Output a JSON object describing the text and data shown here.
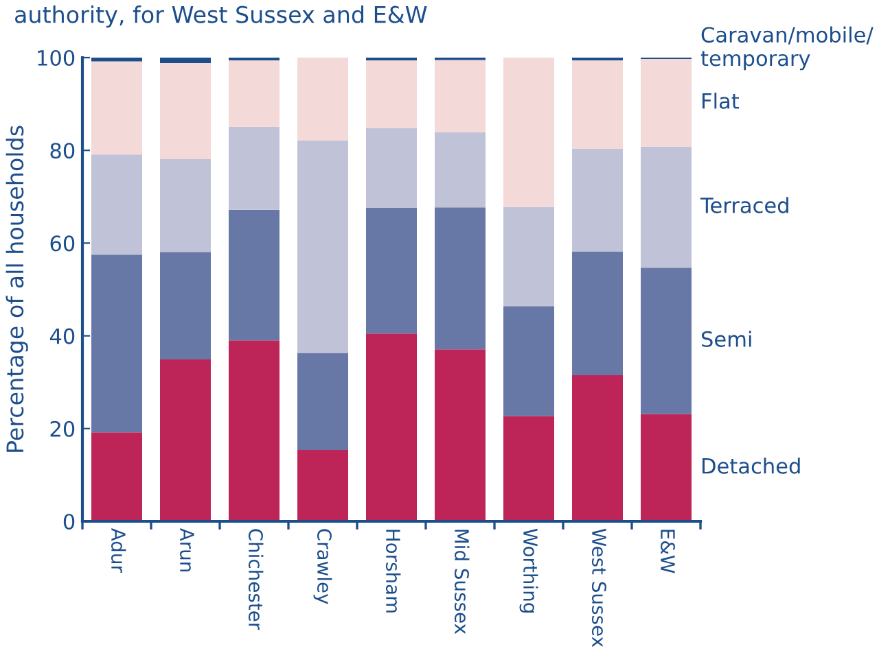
{
  "chart_data": {
    "type": "bar",
    "stacked": true,
    "title": "authority, for West Sussex and E&W",
    "ylabel": "Percentage of all households",
    "categories": [
      "Adur",
      "Arun",
      "Chichester",
      "Crawley",
      "Horsham",
      "Mid Sussex",
      "Worthing",
      "West Sussex",
      "E&W"
    ],
    "series": [
      {
        "name": "Detached",
        "color": "#bd2558",
        "values": [
          19.2,
          34.9,
          39.0,
          15.4,
          40.5,
          37.1,
          22.7,
          31.5,
          23.1
        ]
      },
      {
        "name": "Semi",
        "color": "#6878a6",
        "values": [
          38.3,
          23.2,
          28.2,
          20.9,
          27.1,
          30.6,
          23.7,
          26.7,
          31.6
        ]
      },
      {
        "name": "Terraced",
        "color": "#c0c2d8",
        "values": [
          21.6,
          20.0,
          17.9,
          45.8,
          17.2,
          16.2,
          21.4,
          22.2,
          26.1
        ]
      },
      {
        "name": "Flat",
        "color": "#f4d9d9",
        "values": [
          20.1,
          20.7,
          14.3,
          17.9,
          14.6,
          15.6,
          32.2,
          19.0,
          18.9
        ]
      },
      {
        "name": "Caravan/mobile/\ntemporary",
        "color": "#1d4e8c",
        "values": [
          0.8,
          1.2,
          0.6,
          0.0,
          0.6,
          0.5,
          0.0,
          0.6,
          0.3
        ]
      }
    ],
    "ylim": [
      0,
      100
    ],
    "yticks": [
      0,
      20,
      40,
      60,
      80,
      100
    ],
    "grid": false,
    "legend": false
  }
}
